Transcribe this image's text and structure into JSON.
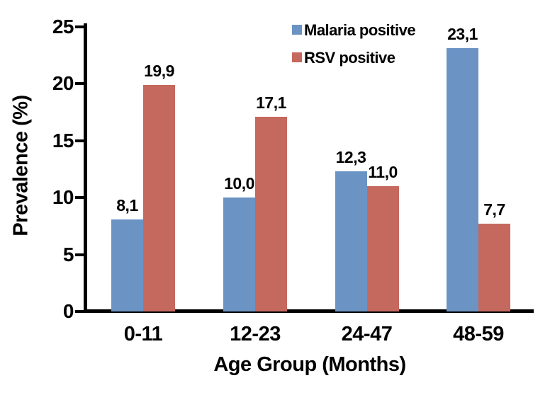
{
  "chart_data": {
    "type": "bar",
    "title": "",
    "xlabel": "Age Group (Months)",
    "ylabel": "Prevalence (%)",
    "categories": [
      "0-11",
      "12-23",
      "24-47",
      "48-59"
    ],
    "series": [
      {
        "name": "Malaria positive",
        "color": "#6b93c4",
        "values": [
          8.1,
          10.0,
          12.3,
          23.1
        ],
        "labels": [
          "8,1",
          "10,0",
          "12,3",
          "23,1"
        ]
      },
      {
        "name": "RSV positive",
        "color": "#c5685e",
        "values": [
          19.9,
          17.1,
          11.0,
          7.7
        ],
        "labels": [
          "19,9",
          "17,1",
          "11,0",
          "7,7"
        ]
      }
    ],
    "y_ticks": [
      0,
      5,
      10,
      15,
      20,
      25
    ],
    "ylim": [
      0,
      25
    ],
    "grid": false,
    "legend_position": "top-right",
    "decimal_separator": ",",
    "axis_color": "#000000",
    "text_color": "#000000",
    "background": "#ffffff"
  }
}
